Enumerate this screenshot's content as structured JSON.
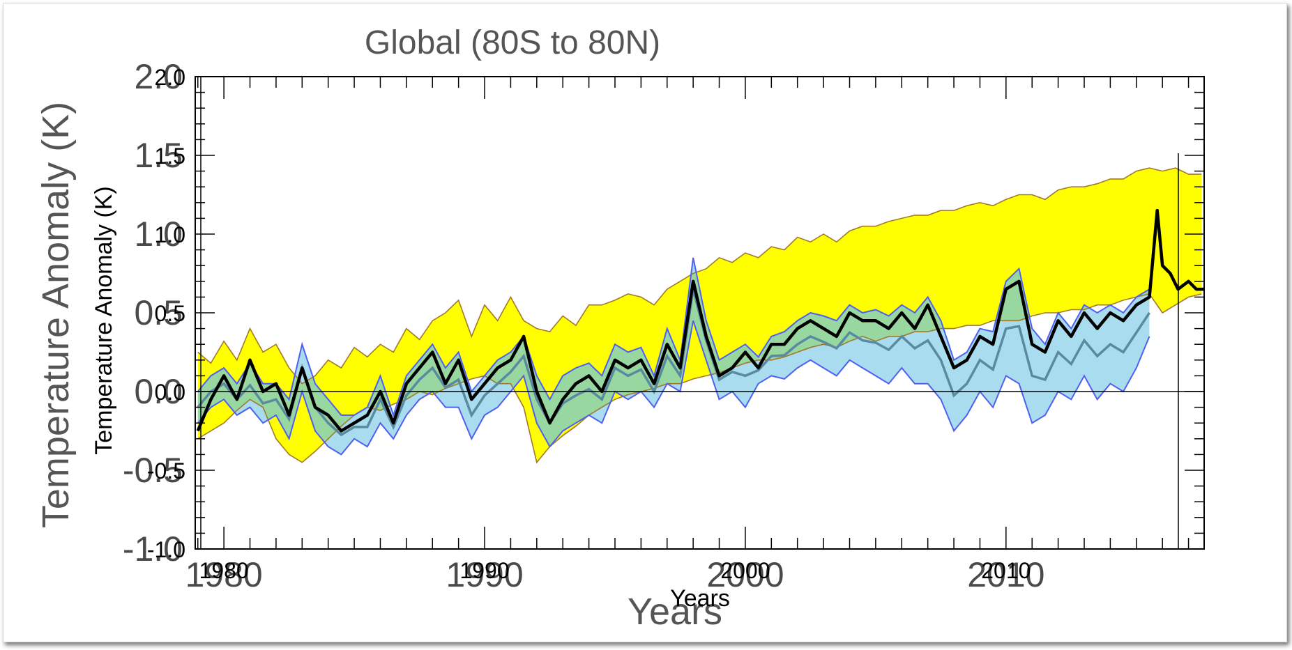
{
  "chart_data": {
    "type": "area",
    "title": "Global (80S to 80N)",
    "xlabel": "Years",
    "ylabel": "Temperature Anomaly (K)",
    "xlim": [
      1978.9,
      2017.6
    ],
    "ylim": [
      -1.0,
      2.0
    ],
    "x_ticks": [
      "1980",
      "1990",
      "2000",
      "2010"
    ],
    "y_ticks": [
      "-1.0",
      "-0.5",
      "0.0",
      "0.5",
      "1.0",
      "1.5",
      "2.0"
    ],
    "grid": false,
    "colors": {
      "yellow_band": "#ffff00",
      "yellow_edge": "#a07a2a",
      "blue_band": "#a8dcee",
      "blue_edge": "#4f5ff0",
      "green_overlap": "#98d8a0",
      "observed_line": "#000000"
    },
    "series": [
      {
        "x": [
          1979.0,
          1979.5,
          1980.0,
          1980.5,
          1981.0,
          1981.5,
          1982.0,
          1982.5,
          1983.0,
          1983.5,
          1984.0,
          1984.5,
          1985.0,
          1985.5,
          1986.0,
          1986.5,
          1987.0,
          1987.5,
          1988.0,
          1988.5,
          1989.0,
          1989.5,
          1990.0,
          1990.5,
          1991.0,
          1991.5,
          1992.0,
          1992.5,
          1993.0,
          1993.5,
          1994.0,
          1994.5,
          1995.0,
          1995.5,
          1996.0,
          1996.5,
          1997.0,
          1997.5,
          1998.0,
          1998.5,
          1999.0,
          1999.5,
          2000.0,
          2000.5,
          2001.0,
          2001.5,
          2002.0,
          2002.5,
          2003.0,
          2003.5,
          2004.0,
          2004.5,
          2005.0,
          2005.5,
          2006.0,
          2006.5,
          2007.0,
          2007.5,
          2008.0,
          2008.5,
          2009.0,
          2009.5,
          2010.0,
          2010.5,
          2011.0,
          2011.5,
          2012.0,
          2012.5,
          2013.0,
          2013.5,
          2014.0,
          2014.5,
          2015.0,
          2015.5,
          2016.0,
          2016.5,
          2017.0,
          2017.5
        ],
        "upper": [
          0.25,
          0.18,
          0.32,
          0.2,
          0.4,
          0.25,
          0.3,
          0.15,
          0.05,
          0.1,
          0.2,
          0.15,
          0.28,
          0.22,
          0.3,
          0.25,
          0.4,
          0.33,
          0.45,
          0.5,
          0.58,
          0.35,
          0.55,
          0.45,
          0.6,
          0.45,
          0.4,
          0.38,
          0.48,
          0.42,
          0.55,
          0.55,
          0.58,
          0.62,
          0.6,
          0.55,
          0.65,
          0.7,
          0.75,
          0.78,
          0.85,
          0.82,
          0.88,
          0.85,
          0.92,
          0.9,
          0.98,
          0.95,
          1.0,
          0.95,
          1.02,
          1.05,
          1.05,
          1.08,
          1.1,
          1.12,
          1.12,
          1.15,
          1.15,
          1.18,
          1.2,
          1.18,
          1.22,
          1.25,
          1.25,
          1.22,
          1.28,
          1.3,
          1.3,
          1.32,
          1.35,
          1.35,
          1.4,
          1.42,
          1.4,
          1.42,
          1.38,
          1.38
        ],
        "lower": [
          -0.3,
          -0.25,
          -0.2,
          -0.12,
          -0.05,
          -0.1,
          -0.3,
          -0.4,
          -0.45,
          -0.38,
          -0.3,
          -0.22,
          -0.15,
          -0.1,
          -0.12,
          -0.08,
          -0.05,
          0.0,
          -0.02,
          0.02,
          0.05,
          0.08,
          0.1,
          0.05,
          0.05,
          -0.1,
          -0.45,
          -0.35,
          -0.28,
          -0.22,
          -0.15,
          -0.1,
          -0.05,
          -0.02,
          0.0,
          0.02,
          0.05,
          0.05,
          0.08,
          0.1,
          0.12,
          0.15,
          0.18,
          0.2,
          0.2,
          0.22,
          0.25,
          0.28,
          0.3,
          0.28,
          0.32,
          0.35,
          0.32,
          0.35,
          0.35,
          0.38,
          0.38,
          0.4,
          0.4,
          0.42,
          0.42,
          0.45,
          0.45,
          0.45,
          0.48,
          0.5,
          0.5,
          0.52,
          0.52,
          0.55,
          0.55,
          0.58,
          0.6,
          0.62,
          0.5,
          0.55,
          0.6,
          0.62
        ]
      },
      {
        "x": [
          1979.0,
          1979.5,
          1980.0,
          1980.5,
          1981.0,
          1981.5,
          1982.0,
          1982.5,
          1983.0,
          1983.5,
          1984.0,
          1984.5,
          1985.0,
          1985.5,
          1986.0,
          1986.5,
          1987.0,
          1987.5,
          1988.0,
          1988.5,
          1989.0,
          1989.5,
          1990.0,
          1990.5,
          1991.0,
          1991.5,
          1992.0,
          1992.5,
          1993.0,
          1993.5,
          1994.0,
          1994.5,
          1995.0,
          1995.5,
          1996.0,
          1996.5,
          1997.0,
          1997.5,
          1998.0,
          1998.5,
          1999.0,
          1999.5,
          2000.0,
          2000.5,
          2001.0,
          2001.5,
          2002.0,
          2002.5,
          2003.0,
          2003.5,
          2004.0,
          2004.5,
          2005.0,
          2005.5,
          2006.0,
          2006.5,
          2007.0,
          2007.5,
          2008.0,
          2008.5,
          2009.0,
          2009.5,
          2010.0,
          2010.5,
          2011.0,
          2011.5,
          2012.0,
          2012.5,
          2013.0,
          2013.5,
          2014.0,
          2014.5,
          2015.0,
          2015.5
        ],
        "upper": [
          0.0,
          0.1,
          0.15,
          0.05,
          0.18,
          0.05,
          0.05,
          -0.05,
          0.3,
          0.05,
          -0.05,
          -0.15,
          -0.15,
          -0.1,
          0.1,
          -0.15,
          0.1,
          0.2,
          0.3,
          0.15,
          0.25,
          0.0,
          0.1,
          0.2,
          0.25,
          0.35,
          0.1,
          -0.05,
          0.1,
          0.15,
          0.18,
          0.1,
          0.3,
          0.25,
          0.28,
          0.1,
          0.4,
          0.2,
          0.85,
          0.45,
          0.2,
          0.25,
          0.3,
          0.22,
          0.35,
          0.38,
          0.45,
          0.5,
          0.48,
          0.45,
          0.55,
          0.5,
          0.52,
          0.48,
          0.55,
          0.5,
          0.6,
          0.45,
          0.2,
          0.25,
          0.4,
          0.38,
          0.7,
          0.78,
          0.4,
          0.3,
          0.5,
          0.4,
          0.55,
          0.5,
          0.55,
          0.5,
          0.6,
          0.65
        ],
        "lower": [
          -0.2,
          -0.1,
          -0.05,
          -0.15,
          -0.1,
          -0.2,
          -0.15,
          -0.3,
          0.0,
          -0.25,
          -0.35,
          -0.4,
          -0.3,
          -0.35,
          -0.2,
          -0.3,
          -0.15,
          -0.05,
          0.0,
          -0.1,
          -0.1,
          -0.3,
          -0.15,
          -0.1,
          0.0,
          0.1,
          -0.2,
          -0.35,
          -0.25,
          -0.2,
          -0.15,
          -0.2,
          0.0,
          -0.05,
          0.0,
          -0.1,
          0.05,
          0.0,
          0.45,
          0.2,
          -0.05,
          0.0,
          -0.1,
          0.05,
          0.1,
          0.08,
          0.15,
          0.2,
          0.15,
          0.1,
          0.2,
          0.15,
          0.1,
          0.05,
          0.15,
          0.05,
          0.05,
          -0.05,
          -0.25,
          -0.15,
          0.0,
          -0.1,
          0.1,
          0.05,
          -0.2,
          -0.15,
          0.0,
          -0.05,
          0.1,
          -0.05,
          0.05,
          0.0,
          0.15,
          0.35
        ]
      },
      {
        "x": [
          1979.0,
          1979.5,
          1980.0,
          1980.5,
          1981.0,
          1981.5,
          1982.0,
          1982.5,
          1983.0,
          1983.5,
          1984.0,
          1984.5,
          1985.0,
          1985.5,
          1986.0,
          1986.5,
          1987.0,
          1987.5,
          1988.0,
          1988.5,
          1989.0,
          1989.5,
          1990.0,
          1990.5,
          1991.0,
          1991.5,
          1992.0,
          1992.5,
          1993.0,
          1993.5,
          1994.0,
          1994.5,
          1995.0,
          1995.5,
          1996.0,
          1996.5,
          1997.0,
          1997.5,
          1998.0,
          1998.5,
          1999.0,
          1999.5,
          2000.0,
          2000.5,
          2001.0,
          2001.5,
          2002.0,
          2002.5,
          2003.0,
          2003.5,
          2004.0,
          2004.5,
          2005.0,
          2005.5,
          2006.0,
          2006.5,
          2007.0,
          2007.5,
          2008.0,
          2008.5,
          2009.0,
          2009.5,
          2010.0,
          2010.5,
          2011.0,
          2011.5,
          2012.0,
          2012.5,
          2013.0,
          2013.5,
          2014.0,
          2014.5,
          2015.0,
          2015.5,
          2015.8,
          2016.0,
          2016.3,
          2016.6,
          2017.0,
          2017.3,
          2017.6
        ],
        "y": [
          -0.25,
          -0.05,
          0.1,
          -0.05,
          0.2,
          0.0,
          0.05,
          -0.15,
          0.15,
          -0.1,
          -0.15,
          -0.25,
          -0.2,
          -0.15,
          0.0,
          -0.2,
          0.05,
          0.15,
          0.25,
          0.05,
          0.2,
          -0.05,
          0.05,
          0.15,
          0.2,
          0.35,
          0.0,
          -0.2,
          -0.05,
          0.05,
          0.1,
          0.0,
          0.2,
          0.15,
          0.2,
          0.05,
          0.3,
          0.15,
          0.7,
          0.35,
          0.1,
          0.15,
          0.25,
          0.15,
          0.3,
          0.3,
          0.4,
          0.45,
          0.4,
          0.35,
          0.5,
          0.45,
          0.45,
          0.4,
          0.5,
          0.4,
          0.55,
          0.35,
          0.15,
          0.2,
          0.35,
          0.3,
          0.65,
          0.7,
          0.3,
          0.25,
          0.45,
          0.35,
          0.5,
          0.4,
          0.5,
          0.45,
          0.55,
          0.6,
          1.15,
          0.8,
          0.75,
          0.65,
          0.7,
          0.65,
          0.65
        ]
      }
    ]
  }
}
